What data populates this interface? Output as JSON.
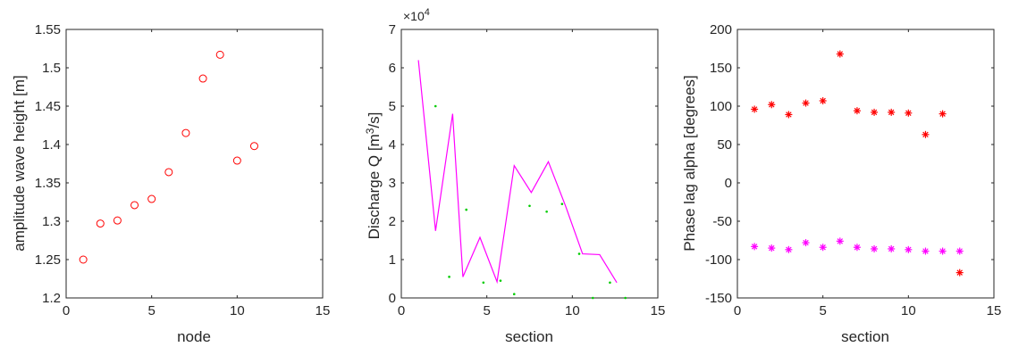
{
  "chart_data": [
    {
      "type": "scatter",
      "xlabel": "node",
      "ylabel": "amplitude wave height [m]",
      "xlim": [
        0,
        15
      ],
      "ylim": [
        1.2,
        1.55
      ],
      "xticks": [
        "0",
        "5",
        "10",
        "15"
      ],
      "yticks": [
        "1.2",
        "1.25",
        "1.3",
        "1.35",
        "1.4",
        "1.45",
        "1.5",
        "1.55"
      ],
      "grid": false,
      "series": [
        {
          "marker": "circle",
          "color": "#ff0000",
          "x": [
            1,
            2,
            3,
            4,
            5,
            6,
            7,
            8,
            9,
            10,
            11
          ],
          "y": [
            1.25,
            1.297,
            1.301,
            1.321,
            1.329,
            1.364,
            1.415,
            1.486,
            1.517,
            1.379,
            1.398
          ]
        }
      ]
    },
    {
      "type": "line",
      "xlabel": "section",
      "ylabel": "Discharge Q [m3/s]",
      "ylabel_parts": [
        "Discharge Q [m",
        "3",
        "/s]"
      ],
      "exponent": "×10",
      "exponent_power": "4",
      "xlim": [
        0,
        15
      ],
      "ylim": [
        0,
        70000
      ],
      "xticks": [
        "0",
        "5",
        "10",
        "15"
      ],
      "yticks": [
        "0",
        "1",
        "2",
        "3",
        "4",
        "5",
        "6",
        "7"
      ],
      "grid": false,
      "series": [
        {
          "style": "line",
          "color": "#ff00ff",
          "x": [
            1,
            2,
            3,
            3.6,
            4.6,
            5.6,
            6.6,
            7.6,
            8.6,
            9.6,
            10.6,
            11.6,
            12.6
          ],
          "y": [
            62000,
            17500,
            48000,
            5500,
            15800,
            4200,
            34500,
            27500,
            35500,
            24000,
            11500,
            11300,
            4000
          ]
        },
        {
          "style": "dot",
          "color": "#00cc00",
          "x": [
            2,
            2.8,
            3.8,
            4.8,
            5.8,
            6.6,
            7.5,
            8.5,
            9.4,
            10.4,
            11.2,
            12.2,
            13.1
          ],
          "y": [
            50000,
            5500,
            23000,
            4000,
            4500,
            1000,
            24000,
            22500,
            24500,
            11500,
            0,
            4000,
            0
          ]
        }
      ]
    },
    {
      "type": "scatter",
      "xlabel": "section",
      "ylabel": "Phase lag alpha [degrees]",
      "xlim": [
        0,
        15
      ],
      "ylim": [
        -150,
        200
      ],
      "xticks": [
        "0",
        "5",
        "10",
        "15"
      ],
      "yticks": [
        "-150",
        "-100",
        "-50",
        "0",
        "50",
        "100",
        "150",
        "200"
      ],
      "grid": false,
      "series": [
        {
          "marker": "asterisk",
          "color": "#ff0000",
          "x": [
            1,
            2,
            3,
            4,
            5,
            6,
            7,
            8,
            9,
            10,
            11,
            12,
            13
          ],
          "y": [
            96,
            102,
            89,
            104,
            107,
            168,
            94,
            92,
            92,
            91,
            63,
            90,
            -117
          ]
        },
        {
          "marker": "asterisk",
          "color": "#ff00ff",
          "x": [
            1,
            2,
            3,
            4,
            5,
            6,
            7,
            8,
            9,
            10,
            11,
            12,
            13
          ],
          "y": [
            -83,
            -85,
            -87,
            -78,
            -84,
            -76,
            -84,
            -86,
            -86,
            -87,
            -89,
            -89,
            -89
          ]
        }
      ]
    }
  ]
}
